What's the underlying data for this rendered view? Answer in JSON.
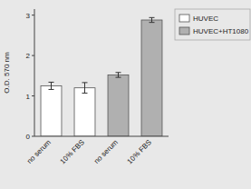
{
  "chart_data": {
    "type": "bar",
    "categories": [
      "no serum",
      "10% FBS",
      "no serum",
      "10% FBS"
    ],
    "series": [
      {
        "name": "HUVEC",
        "color": "#ffffff",
        "values": [
          1.25,
          1.2,
          null,
          null
        ],
        "errors": [
          0.09,
          0.13,
          null,
          null
        ]
      },
      {
        "name": "HUVEC+HT1080",
        "color": "#b0b0b0",
        "values": [
          null,
          null,
          1.52,
          2.88
        ],
        "errors": [
          null,
          null,
          0.06,
          0.06
        ]
      }
    ],
    "y_label": "O.D. 570 nm",
    "ylim": [
      0,
      3.15
    ],
    "yticks": [
      0,
      1,
      2,
      3
    ],
    "grid": false,
    "legend": "right"
  }
}
